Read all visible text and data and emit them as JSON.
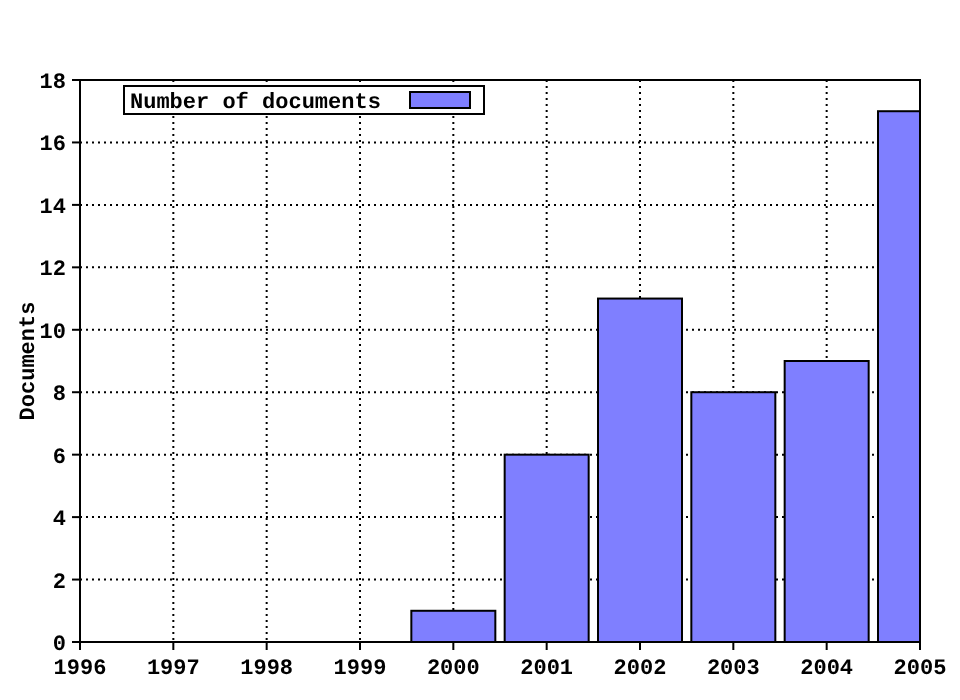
{
  "chart_data": {
    "type": "bar",
    "ylabel": "Documents",
    "x": [
      1996,
      1997,
      1998,
      1999,
      2000,
      2001,
      2002,
      2003,
      2004,
      2005
    ],
    "xlim": [
      1996,
      2005
    ],
    "xticks": [
      1996,
      1997,
      1998,
      1999,
      2000,
      2001,
      2002,
      2003,
      2004,
      2005
    ],
    "ylim": [
      0,
      18
    ],
    "yticks": [
      0,
      2,
      4,
      6,
      8,
      10,
      12,
      14,
      16,
      18
    ],
    "series": [
      {
        "name": "Number of documents",
        "color": "#7f7fff",
        "values": [
          0,
          0,
          0,
          0,
          1,
          6,
          11,
          8,
          9,
          17
        ]
      }
    ],
    "grid": true,
    "legend": "top left"
  }
}
